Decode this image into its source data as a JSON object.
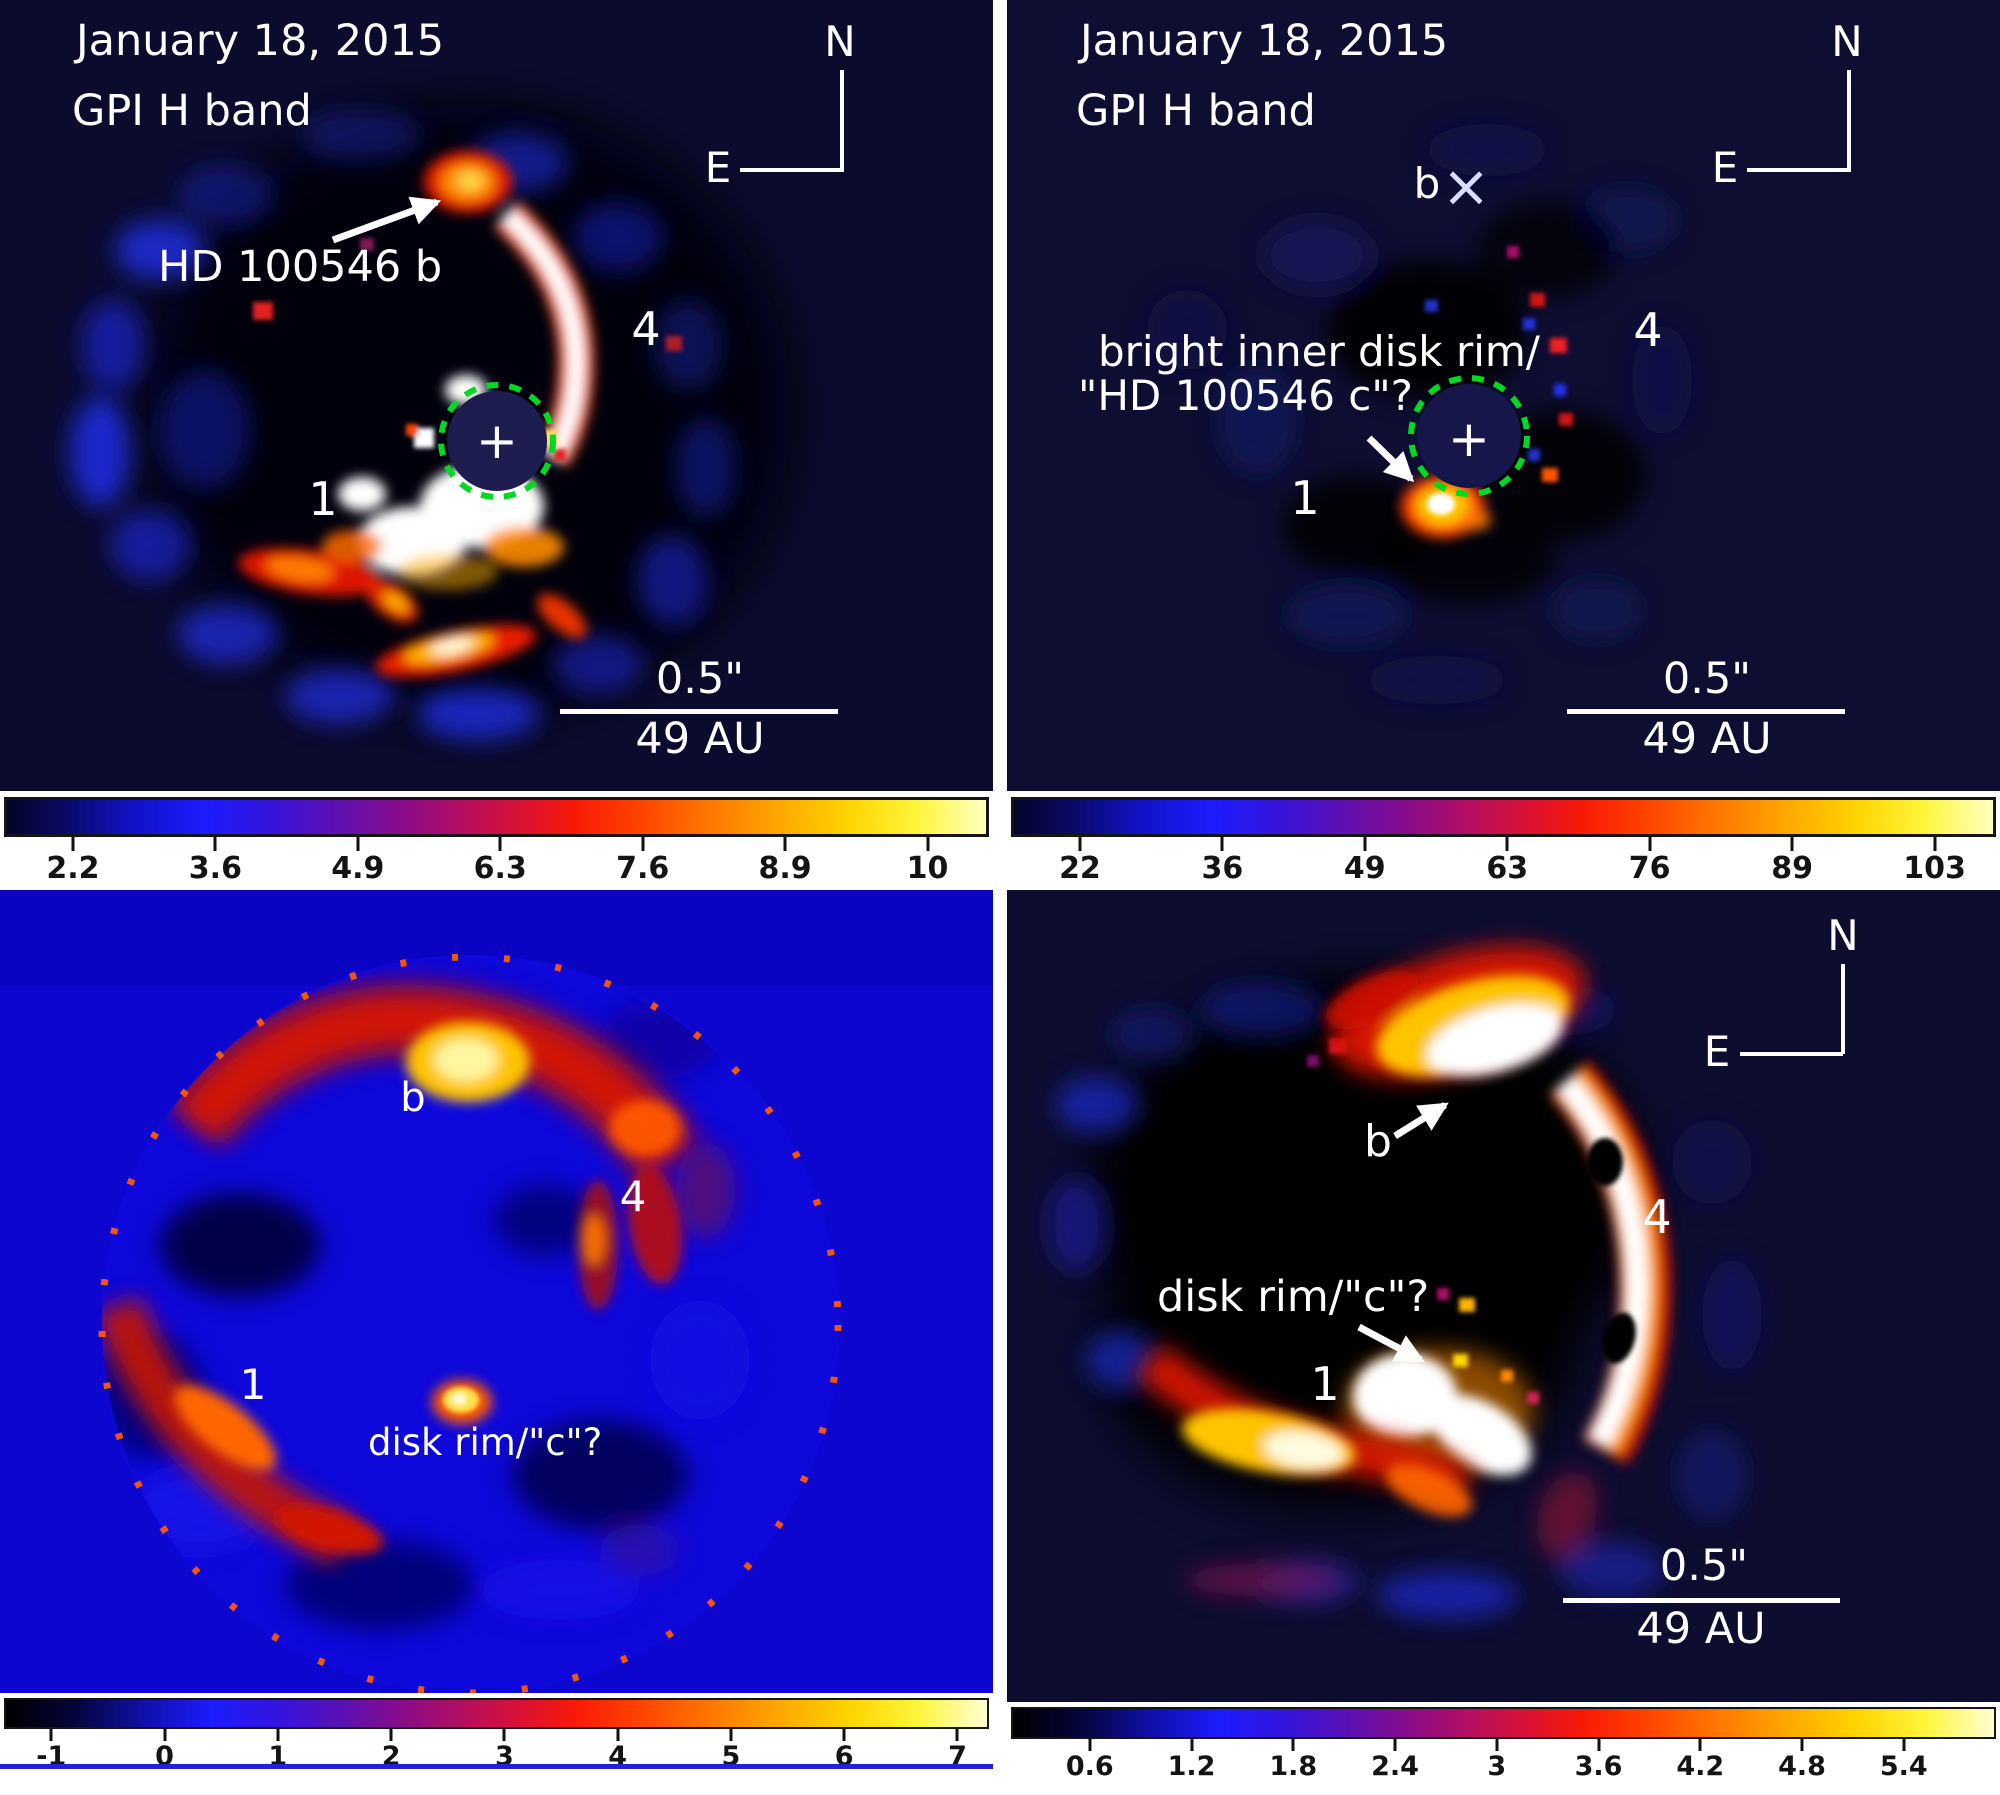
{
  "figure": {
    "panels": {
      "top_left": {
        "date_label": "January 18, 2015",
        "instrument_label": "GPI H band",
        "planet_annotation": "HD 100546 b",
        "spiral_label_4": "4",
        "spiral_label_1": "1",
        "star_marker": "+",
        "compass_north": "N",
        "compass_east": "E",
        "scalebar_angle": "0.5\"",
        "scalebar_distance": "49 AU",
        "colorbar_ticks": [
          "2.2",
          "3.6",
          "4.9",
          "6.3",
          "7.6",
          "8.9",
          "10"
        ]
      },
      "top_right": {
        "date_label": "January 18, 2015",
        "instrument_label": "GPI H band",
        "planet_marker_label": "b",
        "planet_marker_symbol": "×",
        "annotation_line1": "bright inner disk rim/",
        "annotation_line2": "\"HD 100546 c\"?",
        "spiral_label_4": "4",
        "spiral_label_1": "1",
        "star_marker": "+",
        "compass_north": "N",
        "compass_east": "E",
        "scalebar_angle": "0.5\"",
        "scalebar_distance": "49 AU",
        "colorbar_ticks": [
          "22",
          "36",
          "49",
          "63",
          "76",
          "89",
          "103"
        ]
      },
      "bottom_left": {
        "planet_label": "b",
        "spiral_label_4": "4",
        "spiral_label_1": "1",
        "disk_rim_annotation": "disk rim/\"c\"?",
        "colorbar_ticks": [
          "-1",
          "0",
          "1",
          "2",
          "3",
          "4",
          "5",
          "6",
          "7"
        ]
      },
      "bottom_right": {
        "planet_label": "b",
        "disk_rim_annotation": "disk rim/\"c\"?",
        "spiral_label_1": "1",
        "spiral_label_4": "4",
        "compass_north": "N",
        "compass_east": "E",
        "scalebar_angle": "0.5\"",
        "scalebar_distance": "49 AU",
        "colorbar_ticks": [
          "0.6",
          "1.2",
          "1.8",
          "2.4",
          "3",
          "3.6",
          "4.2",
          "4.8",
          "5.4"
        ]
      }
    },
    "colors": {
      "annotation_text": "#ffffff",
      "mask_circle": "#00d822",
      "tick_label": "#141414",
      "colormap": "dark-blue / blue / purple / red / orange / yellow / white heat scale"
    }
  }
}
